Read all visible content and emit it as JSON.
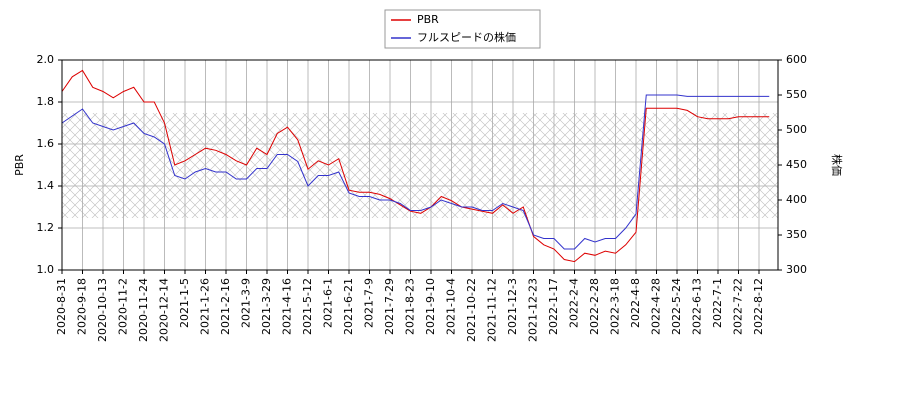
{
  "chart_data": {
    "type": "line",
    "categories": [
      "2020-8-31",
      null,
      "2020-9-18",
      null,
      "2020-10-13",
      null,
      "2020-11-2",
      null,
      "2020-11-24",
      null,
      "2020-12-14",
      null,
      "2021-1-5",
      null,
      "2021-1-26",
      null,
      "2021-2-16",
      null,
      "2021-3-9",
      null,
      "2021-3-29",
      null,
      "2021-4-16",
      null,
      "2021-5-12",
      null,
      "2021-6-1",
      null,
      "2021-6-21",
      null,
      "2021-7-9",
      null,
      "2021-7-29",
      null,
      "2021-8-23",
      null,
      "2021-9-10",
      null,
      "2021-10-4",
      null,
      "2021-10-22",
      null,
      "2021-11-12",
      null,
      "2021-12-3",
      null,
      "2021-12-23",
      null,
      "2022-1-17",
      null,
      "2022-2-4",
      null,
      "2022-2-28",
      null,
      "2022-3-18",
      null,
      "2022-4-8",
      null,
      "2022-4-28",
      null,
      "2022-5-24",
      null,
      "2022-6-13",
      null,
      "2022-7-1",
      null,
      "2022-7-22",
      null,
      "2022-8-12",
      null
    ],
    "series": [
      {
        "name": "PBR",
        "color": "#dd0000",
        "axis": "y",
        "values": [
          1.85,
          1.92,
          1.95,
          1.87,
          1.85,
          1.82,
          1.85,
          1.87,
          1.8,
          1.8,
          1.7,
          1.5,
          1.52,
          1.55,
          1.58,
          1.57,
          1.55,
          1.52,
          1.5,
          1.58,
          1.55,
          1.65,
          1.68,
          1.62,
          1.48,
          1.52,
          1.5,
          1.53,
          1.38,
          1.37,
          1.37,
          1.36,
          1.34,
          1.31,
          1.28,
          1.27,
          1.3,
          1.35,
          1.33,
          1.3,
          1.29,
          1.28,
          1.27,
          1.31,
          1.27,
          1.3,
          1.16,
          1.12,
          1.1,
          1.05,
          1.04,
          1.08,
          1.07,
          1.09,
          1.08,
          1.12,
          1.18,
          1.77,
          1.77,
          1.77,
          1.77,
          1.76,
          1.73,
          1.72,
          1.72,
          1.72,
          1.73,
          1.73,
          1.73,
          1.73
        ]
      },
      {
        "name": "フルスピードの株価",
        "color": "#3333cc",
        "axis": "y2",
        "values": [
          510,
          520,
          530,
          510,
          505,
          500,
          505,
          510,
          495,
          490,
          480,
          435,
          430,
          440,
          445,
          440,
          440,
          430,
          430,
          445,
          445,
          465,
          465,
          455,
          420,
          435,
          435,
          440,
          410,
          405,
          405,
          400,
          400,
          395,
          385,
          385,
          390,
          400,
          395,
          390,
          390,
          385,
          385,
          395,
          390,
          385,
          350,
          345,
          345,
          330,
          330,
          345,
          340,
          345,
          345,
          360,
          380,
          550,
          550,
          550,
          550,
          548,
          548,
          548,
          548,
          548,
          548,
          548,
          548,
          548
        ]
      }
    ],
    "y_label": "PBR",
    "y2_label": "株価",
    "ylim": [
      1.0,
      2.0
    ],
    "yticks": [
      {
        "value": 1.0,
        "label": "1.0"
      },
      1.2,
      1.4,
      1.6,
      1.8,
      {
        "value": 2.0,
        "label": "2.0"
      }
    ],
    "y2lim": [
      300,
      600
    ],
    "y2ticks": [
      300,
      350,
      400,
      450,
      500,
      550,
      600
    ],
    "grid": true,
    "legend": "top"
  }
}
